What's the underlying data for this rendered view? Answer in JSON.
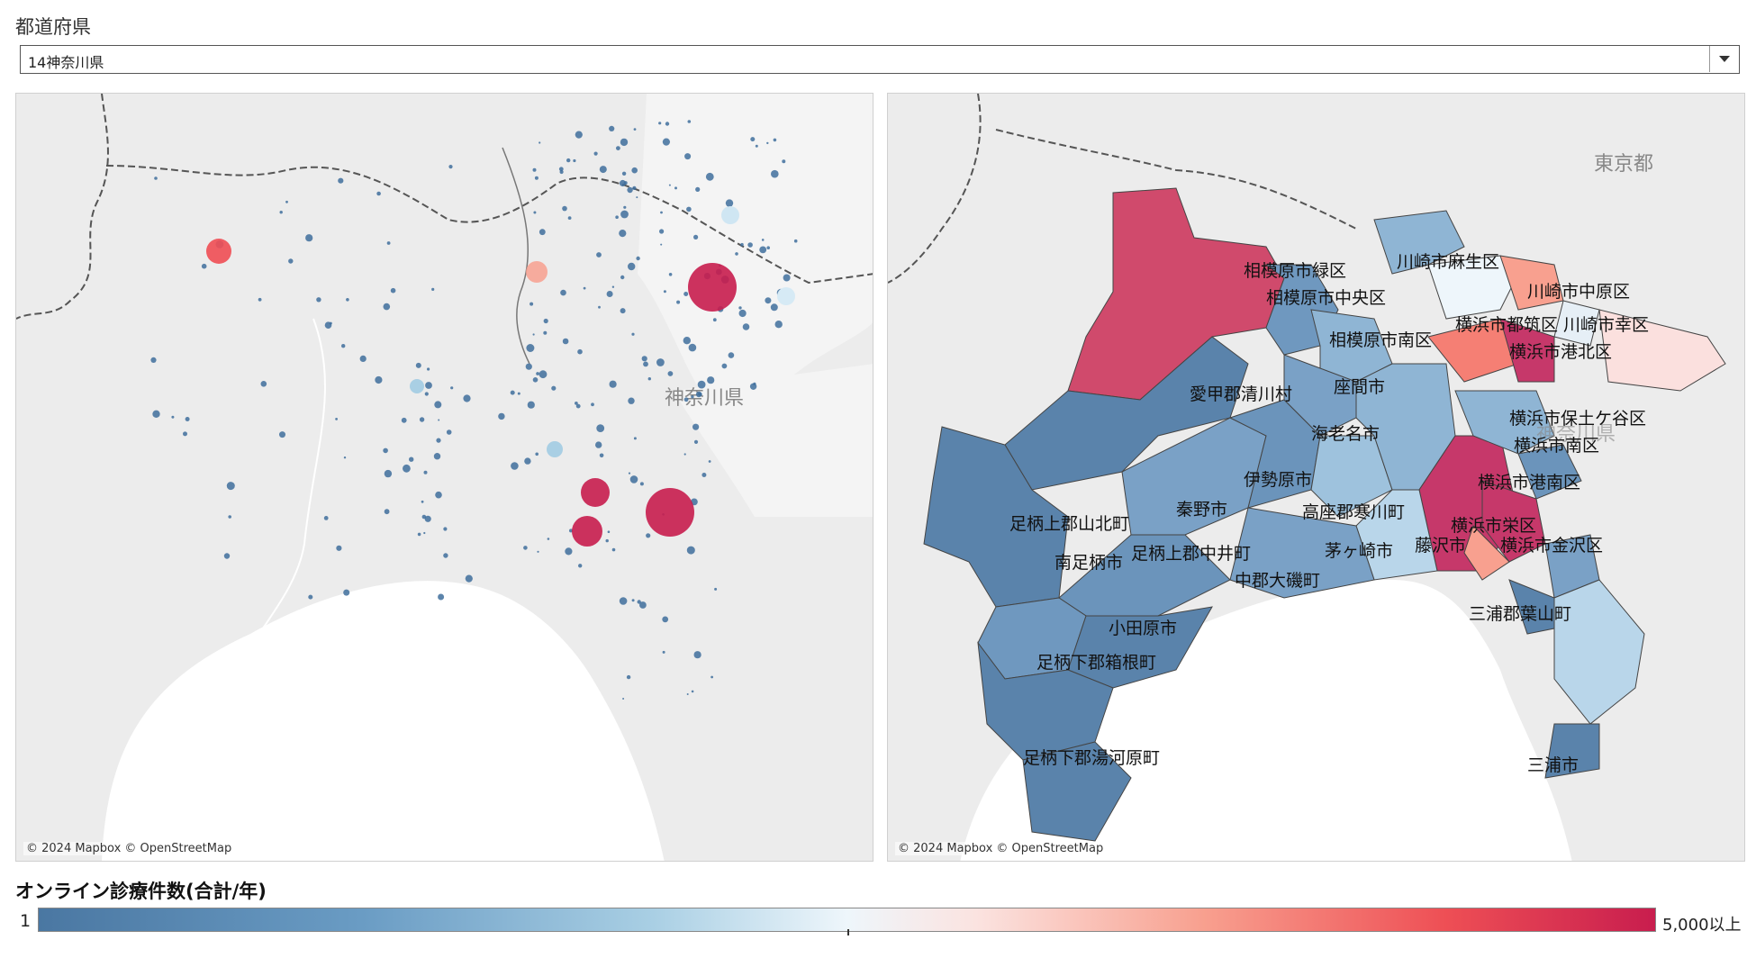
{
  "filter": {
    "label": "都道府県",
    "selected": "14神奈川県"
  },
  "left_map": {
    "region_label": "神奈川県",
    "attribution": "© 2024 Mapbox © OpenStreetMap"
  },
  "right_map": {
    "tokyo_label": "東京都",
    "kanagawa_label": "神奈川県",
    "attribution": "© 2024 Mapbox © OpenStreetMap",
    "districts": [
      {
        "name": "相模原市緑区",
        "level": "high"
      },
      {
        "name": "川崎市麻生区",
        "level": "low"
      },
      {
        "name": "相模原市中央区",
        "level": "low"
      },
      {
        "name": "川崎市中原区",
        "level": "mid-high"
      },
      {
        "name": "横浜市都筑区",
        "level": "mid-high"
      },
      {
        "name": "川崎市幸区",
        "level": "mid-high"
      },
      {
        "name": "相模原市南区",
        "level": "low"
      },
      {
        "name": "横浜市港北区",
        "level": "high"
      },
      {
        "name": "座間市",
        "level": "low"
      },
      {
        "name": "愛甲郡清川村",
        "level": "low"
      },
      {
        "name": "海老名市",
        "level": "low"
      },
      {
        "name": "横浜市保土ケ谷区",
        "level": "low"
      },
      {
        "name": "横浜市南区",
        "level": "low"
      },
      {
        "name": "伊勢原市",
        "level": "low"
      },
      {
        "name": "横浜市港南区",
        "level": "high"
      },
      {
        "name": "秦野市",
        "level": "low"
      },
      {
        "name": "高座郡寒川町",
        "level": "low"
      },
      {
        "name": "足柄上郡山北町",
        "level": "low"
      },
      {
        "name": "横浜市栄区",
        "level": "mid-high"
      },
      {
        "name": "藤沢市",
        "level": "high"
      },
      {
        "name": "茅ヶ崎市",
        "level": "low"
      },
      {
        "name": "横浜市金沢区",
        "level": "low"
      },
      {
        "name": "足柄上郡中井町",
        "level": "low"
      },
      {
        "name": "南足柄市",
        "level": "low"
      },
      {
        "name": "中郡大磯町",
        "level": "low"
      },
      {
        "name": "三浦郡葉山町",
        "level": "low"
      },
      {
        "name": "小田原市",
        "level": "low"
      },
      {
        "name": "足柄下郡箱根町",
        "level": "low"
      },
      {
        "name": "足柄下郡湯河原町",
        "level": "low"
      },
      {
        "name": "三浦市",
        "level": "low"
      }
    ]
  },
  "legend": {
    "title": "オンライン診療件数(合計/年)",
    "min_label": "1",
    "max_label": "5,000以上",
    "colors": {
      "low": "#4a77a2",
      "mid": "#eef6fb",
      "high": "#c81d4e"
    }
  }
}
